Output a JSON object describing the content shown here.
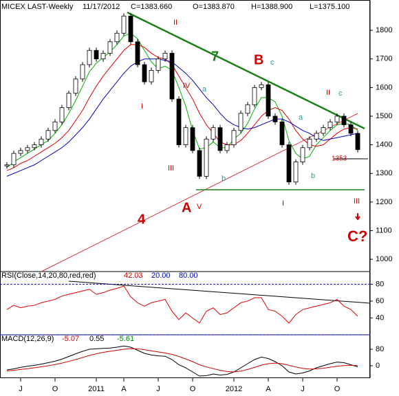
{
  "chart_data": [
    {
      "type": "candlestick",
      "title": "MICEX LAST-Weekly",
      "header": [
        "11/17/2012",
        "C=1383.660",
        "O=1383.870",
        "H=1388.900",
        "L=1375.100"
      ],
      "categories": [
        null,
        null,
        "J",
        null,
        null,
        null,
        null,
        "O",
        null,
        null,
        null,
        null,
        null,
        "2011",
        null,
        null,
        null,
        "A",
        null,
        null,
        null,
        null,
        "J",
        null,
        null,
        null,
        null,
        "O",
        null,
        null,
        null,
        null,
        null,
        "2012",
        null,
        null,
        null,
        null,
        "A",
        null,
        null,
        null,
        null,
        "J",
        null,
        null,
        null,
        null,
        "O",
        null,
        null,
        null
      ],
      "close": [
        1330,
        1370,
        1380,
        1390,
        1400,
        1420,
        1450,
        1480,
        1530,
        1580,
        1630,
        1680,
        1730,
        1700,
        1720,
        1760,
        1790,
        1850,
        1760,
        1680,
        1620,
        1660,
        1700,
        1720,
        1560,
        1400,
        1460,
        1380,
        1290,
        1420,
        1460,
        1380,
        1400,
        1450,
        1510,
        1540,
        1600,
        1610,
        1500,
        1480,
        1400,
        1270,
        1340,
        1390,
        1420,
        1440,
        1460,
        1480,
        1500,
        1470,
        1440,
        1383
      ],
      "series": [
        {
          "color": "#00b000",
          "values": [
            1320,
            1340,
            1355,
            1370,
            1385,
            1400,
            1415,
            1440,
            1470,
            1510,
            1555,
            1605,
            1655,
            1685,
            1705,
            1725,
            1750,
            1780,
            1790,
            1770,
            1730,
            1690,
            1665,
            1675,
            1660,
            1600,
            1535,
            1450,
            1385,
            1390,
            1410,
            1390,
            1390,
            1420,
            1440,
            1475,
            1525,
            1565,
            1565,
            1550,
            1500,
            1415,
            1370,
            1350,
            1360,
            1400,
            1425,
            1450,
            1470,
            1475,
            1470,
            1450
          ]
        },
        {
          "color": "#e00000",
          "values": [
            1310,
            1320,
            1335,
            1345,
            1360,
            1375,
            1390,
            1405,
            1425,
            1450,
            1485,
            1520,
            1565,
            1605,
            1640,
            1670,
            1700,
            1730,
            1750,
            1750,
            1740,
            1720,
            1705,
            1700,
            1680,
            1640,
            1600,
            1560,
            1510,
            1470,
            1440,
            1410,
            1400,
            1400,
            1415,
            1440,
            1470,
            1500,
            1520,
            1530,
            1520,
            1490,
            1450,
            1420,
            1400,
            1395,
            1400,
            1420,
            1440,
            1455,
            1460,
            1455
          ]
        },
        {
          "color": "#0000c0",
          "values": [
            1290,
            1300,
            1310,
            1320,
            1330,
            1345,
            1360,
            1375,
            1390,
            1410,
            1435,
            1460,
            1490,
            1525,
            1560,
            1590,
            1620,
            1650,
            1675,
            1690,
            1700,
            1700,
            1700,
            1695,
            1690,
            1670,
            1650,
            1625,
            1595,
            1565,
            1540,
            1510,
            1485,
            1470,
            1460,
            1455,
            1460,
            1470,
            1480,
            1490,
            1490,
            1480,
            1465,
            1450,
            1440,
            1425,
            1415,
            1420,
            1425,
            1430,
            1435,
            1440
          ]
        }
      ],
      "ylim": [
        957,
        1906
      ],
      "yticks": [
        1000,
        1100,
        1200,
        1300,
        1400,
        1500,
        1600,
        1700,
        1800
      ],
      "annotations": [
        {
          "text": "II",
          "color": "#d00000"
        },
        {
          "text": "I",
          "color": "#d00000"
        },
        {
          "text": "IV",
          "color": "#d00000"
        },
        {
          "text": "a",
          "color": "#2a9a9a"
        },
        {
          "text": "III",
          "color": "#d00000"
        },
        {
          "text": "b",
          "color": "#2a9a9a"
        },
        {
          "text": "A",
          "color": "#d00000"
        },
        {
          "text": "V",
          "color": "#d00000"
        },
        {
          "text": "B",
          "color": "#d00000"
        },
        {
          "text": "c",
          "color": "#2a9a9a"
        },
        {
          "text": "7",
          "color": "#1a801a"
        },
        {
          "text": "4",
          "color": "#d00000"
        },
        {
          "text": "I",
          "color": "#d00000"
        },
        {
          "text": "b",
          "color": "#2a9a9a"
        },
        {
          "text": "a",
          "color": "#2a9a9a"
        },
        {
          "text": "II",
          "color": "#d00000"
        },
        {
          "text": "c",
          "color": "#2a9a9a"
        },
        {
          "text": "III",
          "color": "#d00000"
        },
        {
          "text": "C?",
          "color": "#d00000"
        },
        {
          "text": "1353",
          "color": "#d00000"
        }
      ]
    },
    {
      "type": "line",
      "title": "RSI(Close,14,20,80,red,red)",
      "last_label": "42.03",
      "levels": [
        {
          "value": 20,
          "label": "20.00"
        },
        {
          "value": 80,
          "label": "80.00"
        }
      ],
      "series": [
        {
          "color": "#e00000",
          "values": [
            50,
            55,
            52,
            54,
            55,
            58,
            60,
            62,
            66,
            68,
            70,
            72,
            74,
            68,
            70,
            73,
            75,
            78,
            65,
            58,
            54,
            58,
            60,
            62,
            48,
            38,
            46,
            40,
            34,
            48,
            52,
            44,
            46,
            52,
            58,
            60,
            64,
            64,
            50,
            48,
            42,
            34,
            44,
            50,
            52,
            54,
            56,
            58,
            62,
            54,
            50,
            42
          ]
        }
      ],
      "ylim": [
        20,
        95
      ],
      "yticks": [
        40,
        60,
        80
      ]
    },
    {
      "type": "macd",
      "title": "MACD(12,26,9)",
      "header": [
        {
          "text": "-5.07",
          "color": "#d00000"
        },
        {
          "text": "0.55",
          "color": "#000000"
        },
        {
          "text": "-5.61",
          "color": "#008000"
        }
      ],
      "series": [
        {
          "color": "#000000",
          "values": [
            -20,
            -15,
            -8,
            -2,
            2,
            8,
            15,
            22,
            32,
            45,
            58,
            70,
            80,
            82,
            84,
            86,
            90,
            96,
            90,
            75,
            60,
            52,
            48,
            46,
            30,
            5,
            -10,
            -30,
            -50,
            -48,
            -40,
            -45,
            -42,
            -30,
            -10,
            10,
            30,
            42,
            35,
            20,
            0,
            -30,
            -40,
            -35,
            -25,
            -10,
            0,
            10,
            18,
            15,
            5,
            -5
          ]
        },
        {
          "color": "#d00000",
          "values": [
            -25,
            -22,
            -18,
            -14,
            -10,
            -5,
            0,
            6,
            13,
            21,
            30,
            40,
            50,
            58,
            65,
            70,
            75,
            80,
            83,
            82,
            78,
            72,
            67,
            62,
            55,
            45,
            33,
            20,
            5,
            -6,
            -14,
            -22,
            -28,
            -30,
            -26,
            -18,
            -8,
            3,
            10,
            13,
            10,
            2,
            -6,
            -13,
            -16,
            -15,
            -12,
            -7,
            -2,
            1,
            2,
            1
          ]
        }
      ],
      "ylim": [
        -60,
        150
      ],
      "yticks": [
        0,
        80
      ]
    }
  ]
}
